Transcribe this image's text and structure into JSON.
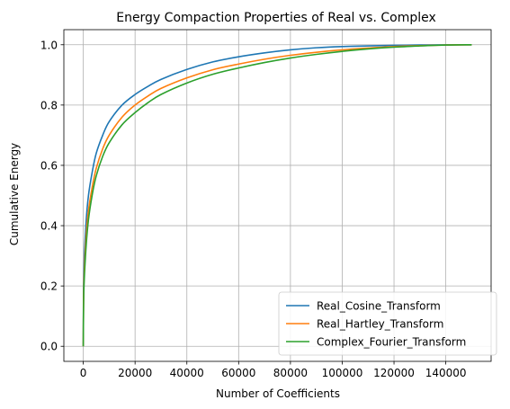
{
  "chart_data": {
    "type": "line",
    "title": "Energy Compaction Properties of Real vs. Complex",
    "xlabel": "Number of Coefficients",
    "ylabel": "Cumulative Energy",
    "xlim": [
      -7500,
      157500
    ],
    "ylim": [
      -0.05,
      1.05
    ],
    "x_ticks": [
      0,
      20000,
      40000,
      60000,
      80000,
      100000,
      120000,
      140000
    ],
    "x_tick_labels": [
      "0",
      "20000",
      "40000",
      "60000",
      "80000",
      "100000",
      "120000",
      "140000"
    ],
    "y_ticks": [
      0.0,
      0.2,
      0.4,
      0.6,
      0.8,
      1.0
    ],
    "y_tick_labels": [
      "0.0",
      "0.2",
      "0.4",
      "0.6",
      "0.8",
      "1.0"
    ],
    "grid": true,
    "legend_position": "lower-right",
    "x": [
      0,
      200,
      1000,
      2000,
      3500,
      5000,
      7500,
      10000,
      15000,
      20000,
      25000,
      30000,
      40000,
      50000,
      60000,
      70000,
      80000,
      90000,
      100000,
      110000,
      120000,
      130000,
      140000,
      150000
    ],
    "series": [
      {
        "name": "Real_Cosine_Transform",
        "color": "#1f77b4",
        "values": [
          0.0,
          0.24,
          0.4,
          0.5,
          0.58,
          0.64,
          0.7,
          0.745,
          0.8,
          0.835,
          0.862,
          0.885,
          0.918,
          0.943,
          0.96,
          0.973,
          0.983,
          0.99,
          0.994,
          0.996,
          0.998,
          0.999,
          0.9995,
          1.0
        ]
      },
      {
        "name": "Real_Hartley_Transform",
        "color": "#ff7f0e",
        "values": [
          0.0,
          0.2,
          0.35,
          0.45,
          0.53,
          0.59,
          0.655,
          0.7,
          0.76,
          0.8,
          0.83,
          0.855,
          0.89,
          0.917,
          0.936,
          0.952,
          0.965,
          0.975,
          0.983,
          0.989,
          0.994,
          0.997,
          0.999,
          1.0
        ]
      },
      {
        "name": "Complex_Fourier_Transform",
        "color": "#2ca02c",
        "values": [
          0.0,
          0.18,
          0.32,
          0.42,
          0.505,
          0.565,
          0.63,
          0.675,
          0.735,
          0.775,
          0.808,
          0.835,
          0.873,
          0.902,
          0.923,
          0.941,
          0.956,
          0.968,
          0.978,
          0.986,
          0.992,
          0.996,
          0.999,
          1.0
        ]
      }
    ]
  }
}
